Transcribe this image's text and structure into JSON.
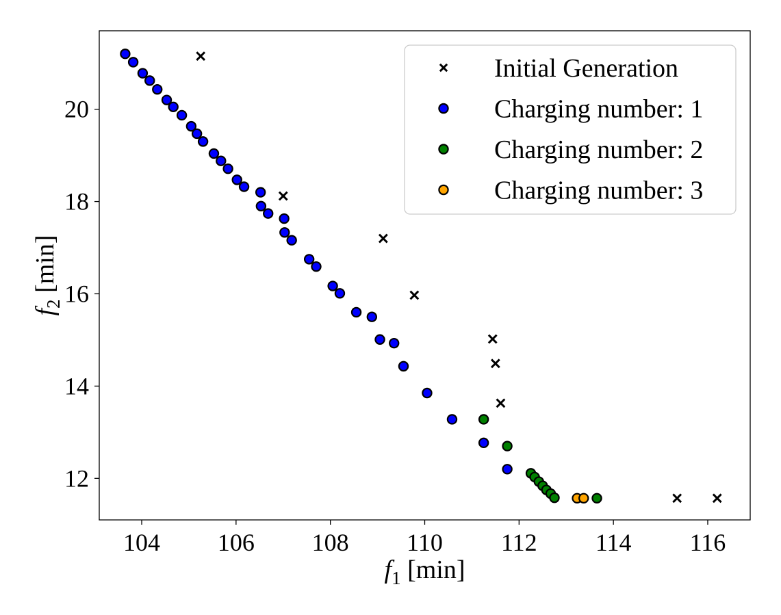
{
  "chart_data": {
    "type": "scatter",
    "title": "",
    "xlabel": {
      "var": "f",
      "sub": "1",
      "unit": " [min]"
    },
    "ylabel": {
      "var": "f",
      "sub": "2",
      "unit": " [min]"
    },
    "xlim": [
      103.1,
      116.9
    ],
    "ylim": [
      11.1,
      21.7
    ],
    "xticks": [
      104,
      106,
      108,
      110,
      112,
      114,
      116
    ],
    "yticks": [
      12,
      14,
      16,
      18,
      20
    ],
    "grid": false,
    "legend_position": "top-right",
    "series": [
      {
        "name": "Initial Generation",
        "marker": "x",
        "color": "#000000",
        "points": [
          [
            105.25,
            21.15
          ],
          [
            107.0,
            18.12
          ],
          [
            109.12,
            17.2
          ],
          [
            109.78,
            15.97
          ],
          [
            111.44,
            15.02
          ],
          [
            111.5,
            14.49
          ],
          [
            111.61,
            13.63
          ],
          [
            115.35,
            11.57
          ],
          [
            116.2,
            11.57
          ]
        ]
      },
      {
        "name": "Charging number: 1",
        "marker": "o",
        "color": "#0000ff",
        "points": [
          [
            103.65,
            21.2
          ],
          [
            103.82,
            21.02
          ],
          [
            104.02,
            20.78
          ],
          [
            104.17,
            20.62
          ],
          [
            104.33,
            20.43
          ],
          [
            104.53,
            20.2
          ],
          [
            104.67,
            20.05
          ],
          [
            104.85,
            19.87
          ],
          [
            105.05,
            19.63
          ],
          [
            105.17,
            19.47
          ],
          [
            105.3,
            19.3
          ],
          [
            105.53,
            19.04
          ],
          [
            105.68,
            18.88
          ],
          [
            105.83,
            18.71
          ],
          [
            106.02,
            18.47
          ],
          [
            106.17,
            18.32
          ],
          [
            106.52,
            18.2
          ],
          [
            106.53,
            17.9
          ],
          [
            106.68,
            17.74
          ],
          [
            107.02,
            17.63
          ],
          [
            107.03,
            17.33
          ],
          [
            107.18,
            17.16
          ],
          [
            107.55,
            16.75
          ],
          [
            107.7,
            16.59
          ],
          [
            108.05,
            16.17
          ],
          [
            108.2,
            16.01
          ],
          [
            108.55,
            15.6
          ],
          [
            108.88,
            15.5
          ],
          [
            109.05,
            15.01
          ],
          [
            109.35,
            14.93
          ],
          [
            109.55,
            14.43
          ],
          [
            110.05,
            13.85
          ],
          [
            110.58,
            13.28
          ],
          [
            111.25,
            12.77
          ],
          [
            111.75,
            12.2
          ]
        ]
      },
      {
        "name": "Charging number: 2",
        "marker": "o",
        "color": "#008000",
        "points": [
          [
            111.25,
            13.28
          ],
          [
            111.75,
            12.7
          ],
          [
            112.25,
            12.11
          ],
          [
            112.33,
            12.03
          ],
          [
            112.42,
            11.93
          ],
          [
            112.5,
            11.84
          ],
          [
            112.58,
            11.75
          ],
          [
            112.67,
            11.67
          ],
          [
            112.75,
            11.58
          ],
          [
            113.65,
            11.57
          ]
        ]
      },
      {
        "name": "Charging number: 3",
        "marker": "o",
        "color": "#ffa500",
        "points": [
          [
            113.23,
            11.57
          ],
          [
            113.37,
            11.57
          ]
        ]
      }
    ]
  }
}
